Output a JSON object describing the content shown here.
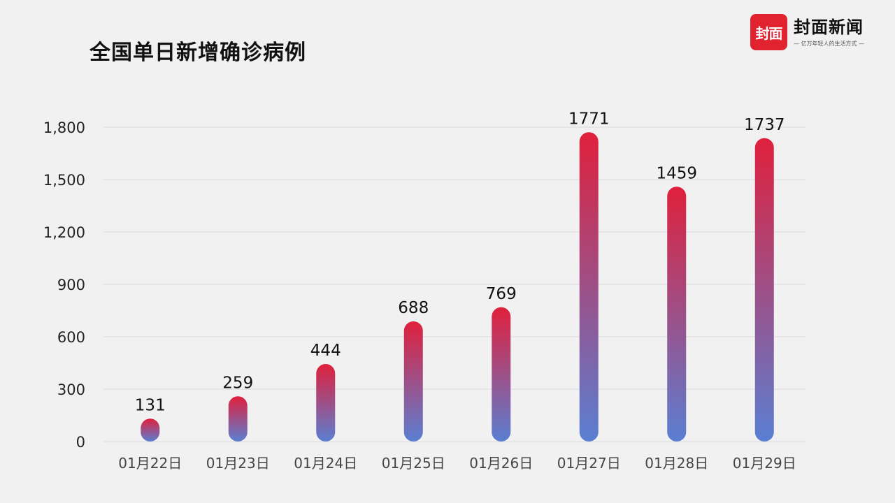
{
  "logo": {
    "badge": "封面",
    "name": "封面新闻",
    "slogan": "— 亿万年轻人的生活方式 —"
  },
  "chart_data": {
    "type": "bar",
    "title": "全国单日新增确诊病例",
    "categories": [
      "01月22日",
      "01月23日",
      "01月24日",
      "01月25日",
      "01月26日",
      "01月27日",
      "01月28日",
      "01月29日"
    ],
    "values": [
      131,
      259,
      444,
      688,
      769,
      1771,
      1459,
      1737
    ],
    "ylim": [
      0,
      1800
    ],
    "yticks": [
      0,
      300,
      600,
      900,
      1200,
      1500,
      1800
    ],
    "ytick_labels": [
      "0",
      "300",
      "600",
      "900",
      "1,200",
      "1,500",
      "1,800"
    ],
    "grid": true,
    "colors": {
      "top": "#e0203c",
      "bottom": "#5a7fd2"
    }
  }
}
